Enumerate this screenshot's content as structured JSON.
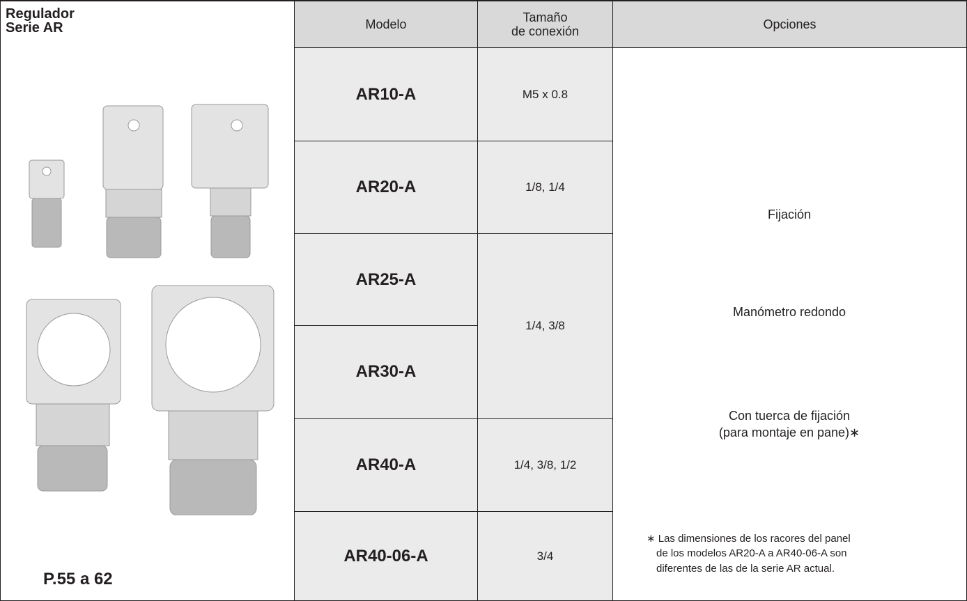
{
  "header": {
    "title": [
      "Regulador",
      "Serie AR"
    ],
    "page_ref": "P.55 a 62"
  },
  "table": {
    "headers": [
      "Modelo",
      [
        "Tamaño",
        "de conexión"
      ],
      "Opciones"
    ],
    "models": [
      "AR10-A",
      "AR20-A",
      "AR25-A",
      "AR30-A",
      "AR40-A",
      "AR40-06-A"
    ],
    "sizes": [
      "M5 x 0.8",
      "1/8, 1/4",
      "1/4, 3/8",
      "1/4, 3/8, 1/2",
      "3/4"
    ],
    "options": [
      "Fijación",
      "Manómetro redondo",
      "Con tuerca de fijación",
      "(para montaje en pane)∗"
    ],
    "footnote": [
      "∗ Las dimensiones de los racores del panel",
      "de los modelos AR20-A a AR40-06-A son",
      "diferentes de las de la serie AR actual."
    ]
  }
}
